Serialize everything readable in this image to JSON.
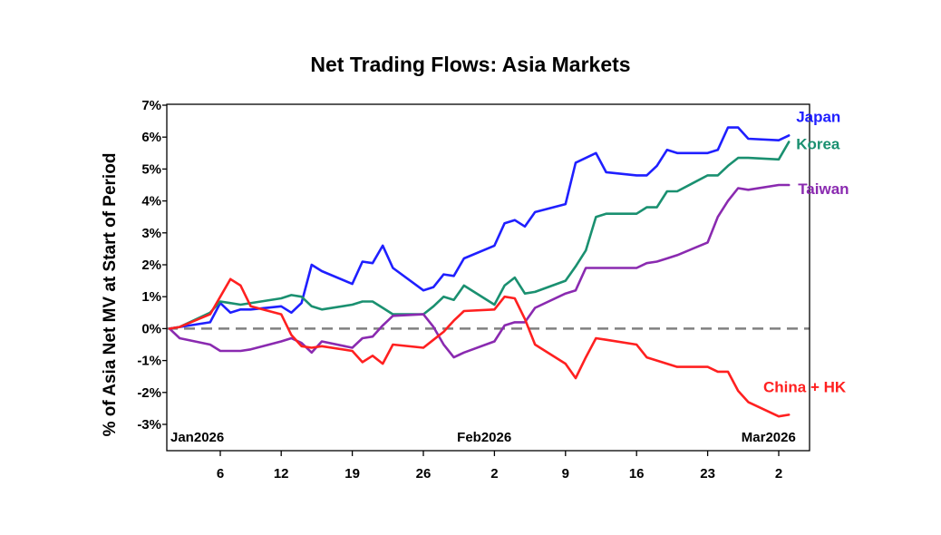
{
  "chart_data": {
    "type": "line",
    "title": "Net Trading Flows: Asia Markets",
    "ylabel": "% of Asia Net MV at Start of Period",
    "ylim": [
      -3,
      7
    ],
    "yticks": [
      7,
      6,
      5,
      4,
      3,
      2,
      1,
      0,
      -1,
      -2,
      -3
    ],
    "ytick_labels": [
      "7%",
      "6%",
      "5%",
      "4%",
      "3%",
      "2%",
      "1%",
      "0%",
      "-1%",
      "-2%",
      "-3%"
    ],
    "xlim": [
      "2026-01-01",
      "2026-03-03"
    ],
    "xticks": [
      {
        "date": "2026-01-06",
        "label": "6"
      },
      {
        "date": "2026-01-12",
        "label": "12"
      },
      {
        "date": "2026-01-19",
        "label": "19"
      },
      {
        "date": "2026-01-26",
        "label": "26"
      },
      {
        "date": "2026-02-02",
        "label": "2"
      },
      {
        "date": "2026-02-09",
        "label": "9"
      },
      {
        "date": "2026-02-16",
        "label": "16"
      },
      {
        "date": "2026-02-23",
        "label": "23"
      },
      {
        "date": "2026-03-02",
        "label": "2"
      }
    ],
    "period_labels": [
      {
        "date": "2026-01-01",
        "label": "Jan2026"
      },
      {
        "date": "2026-02-01",
        "label": "Feb2026"
      },
      {
        "date": "2026-03-01",
        "label": "Mar2026"
      }
    ],
    "reference_line": {
      "y": 0,
      "style": "dashed",
      "color": "#808080"
    },
    "series": [
      {
        "name": "Japan",
        "color": "#1f1fff",
        "points": [
          [
            "2026-01-01",
            0.0
          ],
          [
            "2026-01-02",
            0.05
          ],
          [
            "2026-01-05",
            0.2
          ],
          [
            "2026-01-06",
            0.8
          ],
          [
            "2026-01-07",
            0.5
          ],
          [
            "2026-01-08",
            0.6
          ],
          [
            "2026-01-09",
            0.6
          ],
          [
            "2026-01-12",
            0.7
          ],
          [
            "2026-01-13",
            0.5
          ],
          [
            "2026-01-14",
            0.8
          ],
          [
            "2026-01-15",
            2.0
          ],
          [
            "2026-01-16",
            1.8
          ],
          [
            "2026-01-19",
            1.4
          ],
          [
            "2026-01-20",
            2.1
          ],
          [
            "2026-01-21",
            2.05
          ],
          [
            "2026-01-22",
            2.6
          ],
          [
            "2026-01-23",
            1.9
          ],
          [
            "2026-01-26",
            1.2
          ],
          [
            "2026-01-27",
            1.3
          ],
          [
            "2026-01-28",
            1.7
          ],
          [
            "2026-01-29",
            1.65
          ],
          [
            "2026-01-30",
            2.2
          ],
          [
            "2026-02-02",
            2.6
          ],
          [
            "2026-02-03",
            3.3
          ],
          [
            "2026-02-04",
            3.4
          ],
          [
            "2026-02-05",
            3.2
          ],
          [
            "2026-02-06",
            3.65
          ],
          [
            "2026-02-09",
            3.9
          ],
          [
            "2026-02-10",
            5.2
          ],
          [
            "2026-02-12",
            5.5
          ],
          [
            "2026-02-13",
            4.9
          ],
          [
            "2026-02-16",
            4.8
          ],
          [
            "2026-02-17",
            4.8
          ],
          [
            "2026-02-18",
            5.1
          ],
          [
            "2026-02-19",
            5.6
          ],
          [
            "2026-02-20",
            5.5
          ],
          [
            "2026-02-23",
            5.5
          ],
          [
            "2026-02-24",
            5.6
          ],
          [
            "2026-02-25",
            6.3
          ],
          [
            "2026-02-26",
            6.3
          ],
          [
            "2026-02-27",
            5.95
          ],
          [
            "2026-03-02",
            5.9
          ],
          [
            "2026-03-03",
            6.05
          ]
        ]
      },
      {
        "name": "Korea",
        "color": "#1a9070",
        "points": [
          [
            "2026-01-01",
            0.0
          ],
          [
            "2026-01-02",
            0.05
          ],
          [
            "2026-01-05",
            0.5
          ],
          [
            "2026-01-06",
            0.85
          ],
          [
            "2026-01-08",
            0.75
          ],
          [
            "2026-01-12",
            0.95
          ],
          [
            "2026-01-13",
            1.05
          ],
          [
            "2026-01-14",
            1.0
          ],
          [
            "2026-01-15",
            0.7
          ],
          [
            "2026-01-16",
            0.6
          ],
          [
            "2026-01-19",
            0.75
          ],
          [
            "2026-01-20",
            0.85
          ],
          [
            "2026-01-21",
            0.85
          ],
          [
            "2026-01-22",
            0.65
          ],
          [
            "2026-01-23",
            0.45
          ],
          [
            "2026-01-26",
            0.45
          ],
          [
            "2026-01-27",
            0.7
          ],
          [
            "2026-01-28",
            1.0
          ],
          [
            "2026-01-29",
            0.9
          ],
          [
            "2026-01-30",
            1.35
          ],
          [
            "2026-02-02",
            0.75
          ],
          [
            "2026-02-03",
            1.35
          ],
          [
            "2026-02-04",
            1.6
          ],
          [
            "2026-02-05",
            1.1
          ],
          [
            "2026-02-06",
            1.15
          ],
          [
            "2026-02-09",
            1.5
          ],
          [
            "2026-02-10",
            1.95
          ],
          [
            "2026-02-11",
            2.45
          ],
          [
            "2026-02-12",
            3.5
          ],
          [
            "2026-02-13",
            3.6
          ],
          [
            "2026-02-16",
            3.6
          ],
          [
            "2026-02-17",
            3.8
          ],
          [
            "2026-02-18",
            3.8
          ],
          [
            "2026-02-19",
            4.3
          ],
          [
            "2026-02-20",
            4.3
          ],
          [
            "2026-02-23",
            4.8
          ],
          [
            "2026-02-24",
            4.8
          ],
          [
            "2026-02-25",
            5.1
          ],
          [
            "2026-02-26",
            5.35
          ],
          [
            "2026-02-27",
            5.35
          ],
          [
            "2026-03-02",
            5.3
          ],
          [
            "2026-03-03",
            5.85
          ]
        ]
      },
      {
        "name": "Taiwan",
        "color": "#8a2ab0",
        "points": [
          [
            "2026-01-01",
            0.0
          ],
          [
            "2026-01-02",
            -0.3
          ],
          [
            "2026-01-05",
            -0.5
          ],
          [
            "2026-01-06",
            -0.7
          ],
          [
            "2026-01-08",
            -0.7
          ],
          [
            "2026-01-09",
            -0.65
          ],
          [
            "2026-01-12",
            -0.4
          ],
          [
            "2026-01-13",
            -0.3
          ],
          [
            "2026-01-14",
            -0.45
          ],
          [
            "2026-01-15",
            -0.75
          ],
          [
            "2026-01-16",
            -0.4
          ],
          [
            "2026-01-19",
            -0.6
          ],
          [
            "2026-01-20",
            -0.3
          ],
          [
            "2026-01-21",
            -0.25
          ],
          [
            "2026-01-22",
            0.1
          ],
          [
            "2026-01-23",
            0.4
          ],
          [
            "2026-01-26",
            0.45
          ],
          [
            "2026-01-27",
            0.05
          ],
          [
            "2026-01-28",
            -0.5
          ],
          [
            "2026-01-29",
            -0.9
          ],
          [
            "2026-01-30",
            -0.75
          ],
          [
            "2026-02-02",
            -0.4
          ],
          [
            "2026-02-03",
            0.1
          ],
          [
            "2026-02-04",
            0.2
          ],
          [
            "2026-02-05",
            0.2
          ],
          [
            "2026-02-06",
            0.65
          ],
          [
            "2026-02-09",
            1.1
          ],
          [
            "2026-02-10",
            1.2
          ],
          [
            "2026-02-11",
            1.9
          ],
          [
            "2026-02-16",
            1.9
          ],
          [
            "2026-02-17",
            2.05
          ],
          [
            "2026-02-18",
            2.1
          ],
          [
            "2026-02-19",
            2.2
          ],
          [
            "2026-02-20",
            2.3
          ],
          [
            "2026-02-23",
            2.7
          ],
          [
            "2026-02-24",
            3.5
          ],
          [
            "2026-02-25",
            4.0
          ],
          [
            "2026-02-26",
            4.4
          ],
          [
            "2026-02-27",
            4.35
          ],
          [
            "2026-03-02",
            4.5
          ],
          [
            "2026-03-03",
            4.5
          ]
        ]
      },
      {
        "name": "China  + HK",
        "color": "#ff2020",
        "points": [
          [
            "2026-01-01",
            0.0
          ],
          [
            "2026-01-02",
            0.05
          ],
          [
            "2026-01-05",
            0.45
          ],
          [
            "2026-01-06",
            1.0
          ],
          [
            "2026-01-07",
            1.55
          ],
          [
            "2026-01-08",
            1.35
          ],
          [
            "2026-01-09",
            0.7
          ],
          [
            "2026-01-12",
            0.45
          ],
          [
            "2026-01-13",
            -0.2
          ],
          [
            "2026-01-14",
            -0.55
          ],
          [
            "2026-01-15",
            -0.6
          ],
          [
            "2026-01-16",
            -0.55
          ],
          [
            "2026-01-19",
            -0.7
          ],
          [
            "2026-01-20",
            -1.05
          ],
          [
            "2026-01-21",
            -0.85
          ],
          [
            "2026-01-22",
            -1.1
          ],
          [
            "2026-01-23",
            -0.5
          ],
          [
            "2026-01-26",
            -0.6
          ],
          [
            "2026-01-27",
            -0.35
          ],
          [
            "2026-01-28",
            -0.1
          ],
          [
            "2026-01-29",
            0.25
          ],
          [
            "2026-01-30",
            0.55
          ],
          [
            "2026-02-02",
            0.6
          ],
          [
            "2026-02-03",
            1.0
          ],
          [
            "2026-02-04",
            0.95
          ],
          [
            "2026-02-05",
            0.3
          ],
          [
            "2026-02-06",
            -0.5
          ],
          [
            "2026-02-09",
            -1.1
          ],
          [
            "2026-02-10",
            -1.55
          ],
          [
            "2026-02-11",
            -0.9
          ],
          [
            "2026-02-12",
            -0.3
          ],
          [
            "2026-02-13",
            -0.35
          ],
          [
            "2026-02-16",
            -0.5
          ],
          [
            "2026-02-17",
            -0.9
          ],
          [
            "2026-02-18",
            -1.0
          ],
          [
            "2026-02-19",
            -1.1
          ],
          [
            "2026-02-20",
            -1.2
          ],
          [
            "2026-02-23",
            -1.2
          ],
          [
            "2026-02-24",
            -1.35
          ],
          [
            "2026-02-25",
            -1.35
          ],
          [
            "2026-02-26",
            -1.95
          ],
          [
            "2026-02-27",
            -2.3
          ],
          [
            "2026-03-02",
            -2.75
          ],
          [
            "2026-03-03",
            -2.7
          ]
        ]
      }
    ],
    "grid": false,
    "legend": "inline labels at right end of lines"
  }
}
